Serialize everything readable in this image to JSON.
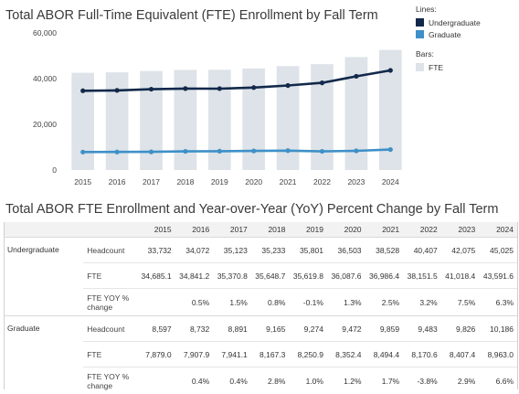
{
  "chart_title": "Total ABOR Full-Time Equivalent (FTE) Enrollment by Fall Term",
  "table_title": "Total ABOR FTE Enrollment and Year-over-Year (YoY) Percent Change by Fall Term",
  "legend": {
    "lines_header": "Lines:",
    "bars_header": "Bars:",
    "items": [
      {
        "label": "Undergraduate",
        "color": "#13294b"
      },
      {
        "label": "Graduate",
        "color": "#3e90c8"
      }
    ],
    "bar_item": {
      "label": "FTE",
      "color": "#dde3e8"
    }
  },
  "chart_data": {
    "type": "bar+line",
    "categories": [
      "2015",
      "2016",
      "2017",
      "2018",
      "2019",
      "2020",
      "2021",
      "2022",
      "2023",
      "2024"
    ],
    "bars": {
      "name": "FTE",
      "color": "#dde3e8",
      "values": [
        42564,
        42749,
        43312,
        43816,
        43870,
        44440,
        45481,
        46322,
        49426,
        52554
      ]
    },
    "series": [
      {
        "name": "Undergraduate",
        "color": "#13294b",
        "values": [
          34685.1,
          34841.2,
          35370.8,
          35648.7,
          35619.8,
          36087.6,
          36986.4,
          38151.5,
          41018.4,
          43591.6
        ]
      },
      {
        "name": "Graduate",
        "color": "#3e90c8",
        "values": [
          7879.0,
          7907.9,
          7941.1,
          8167.3,
          8250.9,
          8352.4,
          8494.4,
          8170.6,
          8407.4,
          8963.0
        ]
      }
    ],
    "y_ticks": [
      "60,000",
      "40,000",
      "20,000",
      "0"
    ],
    "y_tick_values": [
      60000,
      40000,
      20000,
      0
    ],
    "ylim": [
      0,
      60000
    ],
    "grid": false
  },
  "table": {
    "years": [
      "2015",
      "2016",
      "2017",
      "2018",
      "2019",
      "2020",
      "2021",
      "2022",
      "2023",
      "2024"
    ],
    "groups": [
      {
        "name": "Undergraduate",
        "rows": [
          {
            "metric": "Headcount",
            "values": [
              "33,732",
              "34,072",
              "35,123",
              "35,233",
              "35,801",
              "36,503",
              "38,528",
              "40,407",
              "42,075",
              "45,025"
            ]
          },
          {
            "metric": "FTE",
            "values": [
              "34,685.1",
              "34,841.2",
              "35,370.8",
              "35,648.7",
              "35,619.8",
              "36,087.6",
              "36,986.4",
              "38,151.5",
              "41,018.4",
              "43,591.6"
            ]
          },
          {
            "metric": "FTE YOY % change",
            "values": [
              "",
              "0.5%",
              "1.5%",
              "0.8%",
              "-0.1%",
              "1.3%",
              "2.5%",
              "3.2%",
              "7.5%",
              "6.3%"
            ]
          }
        ]
      },
      {
        "name": "Graduate",
        "rows": [
          {
            "metric": "Headcount",
            "values": [
              "8,597",
              "8,732",
              "8,891",
              "9,165",
              "9,274",
              "9,472",
              "9,859",
              "9,483",
              "9,826",
              "10,186"
            ]
          },
          {
            "metric": "FTE",
            "values": [
              "7,879.0",
              "7,907.9",
              "7,941.1",
              "8,167.3",
              "8,250.9",
              "8,352.4",
              "8,494.4",
              "8,170.6",
              "8,407.4",
              "8,963.0"
            ]
          },
          {
            "metric": "FTE YOY % change",
            "values": [
              "",
              "0.4%",
              "0.4%",
              "2.8%",
              "1.0%",
              "1.2%",
              "1.7%",
              "-3.8%",
              "2.9%",
              "6.6%"
            ]
          }
        ]
      }
    ]
  }
}
